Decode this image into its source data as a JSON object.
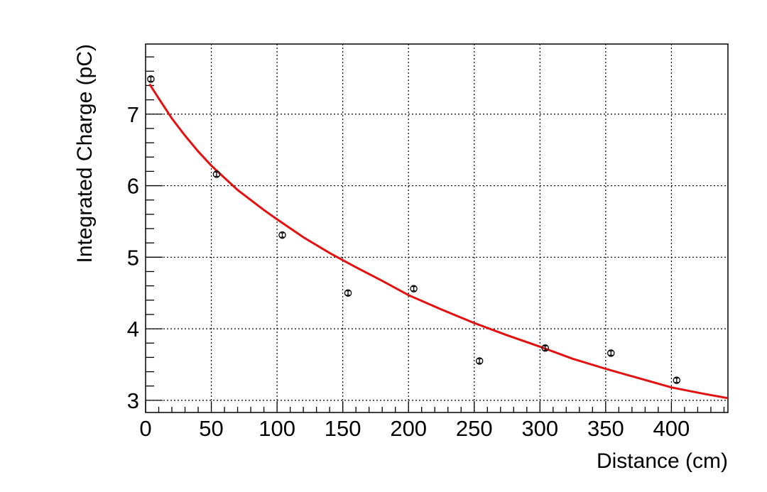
{
  "chart_data": {
    "type": "scatter",
    "title": "",
    "xlabel": "Distance (cm)",
    "ylabel": "Integrated Charge (pC)",
    "xlim": [
      0,
      443
    ],
    "ylim": [
      2.83,
      7.98
    ],
    "grid": true,
    "x_ticks": [
      0,
      50,
      100,
      150,
      200,
      250,
      300,
      350,
      400
    ],
    "y_ticks": [
      3,
      4,
      5,
      6,
      7
    ],
    "x_tick_labels": [
      "0",
      "50",
      "100",
      "150",
      "200",
      "250",
      "300",
      "350",
      "400"
    ],
    "y_tick_labels": [
      "3",
      "4",
      "5",
      "6",
      "7"
    ],
    "series": [
      {
        "type": "scatter",
        "color": "#000000",
        "points": [
          {
            "x": 4,
            "y": 7.49,
            "err": 0.03
          },
          {
            "x": 54,
            "y": 6.16,
            "err": 0.03
          },
          {
            "x": 104,
            "y": 5.31,
            "err": 0.03
          },
          {
            "x": 154,
            "y": 4.5,
            "err": 0.03
          },
          {
            "x": 204,
            "y": 4.56,
            "err": 0.03
          },
          {
            "x": 254,
            "y": 3.55,
            "err": 0.03
          },
          {
            "x": 304,
            "y": 3.73,
            "err": 0.03
          },
          {
            "x": 354,
            "y": 3.66,
            "err": 0.03
          },
          {
            "x": 404,
            "y": 3.28,
            "err": 0.03
          }
        ]
      },
      {
        "type": "line",
        "color": "#e3100f",
        "x": [
          3,
          10,
          20,
          30,
          40,
          50,
          60,
          70,
          80,
          90,
          100,
          120,
          140,
          160,
          180,
          200,
          225,
          250,
          275,
          300,
          325,
          350,
          375,
          400,
          425,
          443
        ],
        "y": [
          7.42,
          7.22,
          6.94,
          6.7,
          6.48,
          6.28,
          6.11,
          5.94,
          5.8,
          5.66,
          5.53,
          5.28,
          5.06,
          4.86,
          4.67,
          4.47,
          4.27,
          4.08,
          3.91,
          3.75,
          3.58,
          3.44,
          3.31,
          3.18,
          3.09,
          3.03
        ]
      }
    ]
  }
}
